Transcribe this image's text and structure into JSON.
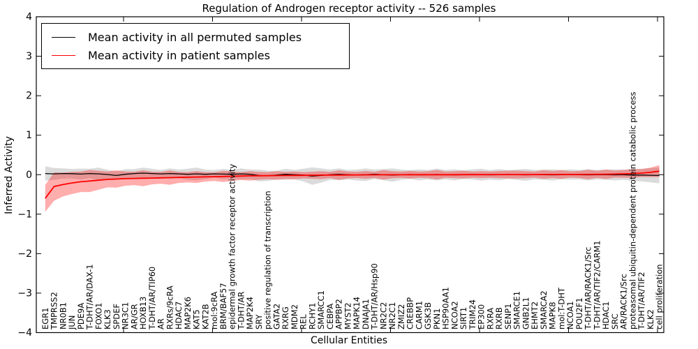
{
  "title": "Regulation of Androgen receptor activity -- 526 samples",
  "chart_data": {
    "type": "line",
    "title": "Regulation of Androgen receptor activity -- 526 samples",
    "xlabel": "Cellular Entities",
    "ylabel": "Inferred Activity",
    "ylim": [
      -4,
      4
    ],
    "yticks": [
      4,
      3,
      2,
      1,
      0,
      -1,
      -2,
      -3,
      -4
    ],
    "grid": false,
    "legend_position": "upper left",
    "legend": [
      {
        "label": "Mean activity in all permuted samples",
        "color": "#000000"
      },
      {
        "label": "Mean activity in patient samples",
        "color": "#ff0000"
      }
    ],
    "band_colors": {
      "permuted": "rgba(0,0,0,0.14)",
      "patient": "rgba(255,0,0,0.32)"
    },
    "categories": [
      "EGR1",
      "TMPRSS2",
      "NR0B1",
      "JUN",
      "PDE9A",
      "T-DHT/AR/DAX-1",
      "FOXO1",
      "KLK3",
      "SPDEF",
      "NR3C1",
      "AR/GR",
      "HOXB13",
      "T-DHT/AR/TIP60",
      "AR",
      "RXRs/9cRA",
      "HDAC7",
      "MAP2K6",
      "KAT5",
      "KAT2B",
      "mol:9cRA",
      "BRM/BAF57",
      "epidermal growth factor receptor activity",
      "T-DHT/AR",
      "MAP2K4",
      "SRY",
      "positive regulation of transcription",
      "GATA2",
      "RXRG",
      "MDM2",
      "REL",
      "RCHY1",
      "SMARCC1",
      "CEBPA",
      "APPBP2",
      "MYST2",
      "MAPK14",
      "DNAJA1",
      "T-DHT/AR/Hsp90",
      "NR2C2",
      "NR2C1",
      "ZMIZ2",
      "CREBBP",
      "CARM1",
      "GSK3B",
      "PKN1",
      "HSP90AA1",
      "NCOA2",
      "SIRT1",
      "TRIM24",
      "EP300",
      "RXRA",
      "RXRB",
      "SENP1",
      "SMARCE1",
      "GNB2L1",
      "EHMT2",
      "SMARCA2",
      "MAPK8",
      "mol:T-DHT",
      "NCOA1",
      "POU2F1",
      "T-DHT/AR/RACK1/Src",
      "T-DHT/AR/TIF2/CARM1",
      "HDAC1",
      "SRC",
      "AR/RACK1/Src",
      "proteasomal ubiquitin-dependent protein catabolic process",
      "T-DHT/AR/TIF2",
      "KLK2",
      "cell proliferation"
    ],
    "series": [
      {
        "name": "Mean activity in all permuted samples",
        "color": "#000000",
        "line_width": 1.3,
        "values": [
          0.03,
          0.02,
          0.03,
          0.025,
          0.015,
          0.03,
          0.02,
          0.005,
          -0.02,
          0.01,
          0.03,
          0.04,
          0.03,
          0.02,
          0.03,
          0.02,
          0.01,
          0.02,
          0.01,
          0.02,
          0.015,
          0.01,
          0.02,
          0.01,
          -0.02,
          -0.03,
          -0.01,
          0.01,
          0,
          -0.01,
          -0.035,
          -0.02,
          0,
          0.01,
          0,
          -0.01,
          0,
          0.01,
          0,
          -0.01,
          0,
          0.005,
          -0.005,
          0,
          0.005,
          0,
          -0.005,
          0,
          0.005,
          0,
          -0.005,
          0,
          0.005,
          0,
          -0.005,
          0,
          0,
          -0.005,
          0,
          0.005,
          0,
          -0.005,
          0,
          0,
          -0.005,
          0,
          -0.01,
          -0.01,
          -0.015,
          -0.02
        ],
        "band_upper": [
          0.21,
          0.17,
          0.16,
          0.145,
          0.155,
          0.15,
          0.18,
          0.125,
          0.08,
          0.14,
          0.14,
          0.18,
          0.15,
          0.12,
          0.16,
          0.13,
          0.15,
          0.18,
          0.13,
          0.12,
          0.145,
          0.12,
          0.16,
          0.13,
          0.13,
          0.1,
          0.1,
          0.15,
          0.12,
          0.15,
          0.185,
          0.16,
          0.13,
          0.16,
          0.12,
          0.13,
          0.16,
          0.13,
          0.14,
          0.16,
          0.13,
          0.115,
          0.135,
          0.12,
          0.155,
          0.12,
          0.135,
          0.11,
          0.135,
          0.15,
          0.115,
          0.14,
          0.115,
          0.13,
          0.145,
          0.12,
          0.13,
          0.135,
          0.12,
          0.135,
          0.12,
          0.135,
          0.12,
          0.13,
          0.135,
          0.13,
          0.14,
          0.15,
          0.165,
          0.18
        ],
        "band_lower": [
          -0.15,
          -0.13,
          -0.1,
          -0.095,
          -0.125,
          -0.09,
          -0.14,
          -0.115,
          -0.12,
          -0.12,
          -0.08,
          -0.1,
          -0.09,
          -0.08,
          -0.1,
          -0.09,
          -0.13,
          -0.14,
          -0.11,
          -0.08,
          -0.115,
          -0.1,
          -0.12,
          -0.11,
          -0.17,
          -0.16,
          -0.12,
          -0.13,
          -0.12,
          -0.17,
          -0.255,
          -0.2,
          -0.13,
          -0.14,
          -0.12,
          -0.15,
          -0.16,
          -0.11,
          -0.14,
          -0.18,
          -0.13,
          -0.105,
          -0.145,
          -0.12,
          -0.145,
          -0.12,
          -0.145,
          -0.11,
          -0.125,
          -0.15,
          -0.125,
          -0.14,
          -0.105,
          -0.13,
          -0.155,
          -0.12,
          -0.13,
          -0.145,
          -0.12,
          -0.125,
          -0.12,
          -0.145,
          -0.12,
          -0.13,
          -0.145,
          -0.13,
          -0.16,
          -0.17,
          -0.195,
          -0.22
        ]
      },
      {
        "name": "Mean activity in patient samples",
        "color": "#ff0000",
        "line_width": 1.8,
        "values": [
          -0.6,
          -0.3,
          -0.25,
          -0.21,
          -0.18,
          -0.16,
          -0.14,
          -0.12,
          -0.11,
          -0.1,
          -0.095,
          -0.09,
          -0.085,
          -0.08,
          -0.075,
          -0.07,
          -0.065,
          -0.06,
          -0.055,
          -0.05,
          -0.045,
          -0.04,
          -0.035,
          -0.03,
          -0.028,
          -0.025,
          -0.022,
          -0.02,
          -0.018,
          -0.016,
          -0.014,
          -0.012,
          -0.01,
          -0.01,
          -0.008,
          -0.006,
          -0.005,
          -0.004,
          -0.003,
          -0.002,
          -0.002,
          -0.001,
          0,
          0,
          0,
          0,
          0,
          0.001,
          0.001,
          0.001,
          0.002,
          0.002,
          0.002,
          0.003,
          0.003,
          0.003,
          0.004,
          0.004,
          0.005,
          0.005,
          0.005,
          0.006,
          0.008,
          0.01,
          0.015,
          0.02,
          0.03,
          0.04,
          0.06,
          0.09
        ],
        "band_upper": [
          -0.26,
          0.06,
          0.05,
          0.07,
          0.08,
          0.12,
          0.1,
          0.08,
          0.11,
          0.08,
          0.075,
          0.11,
          0.075,
          0.07,
          0.105,
          0.07,
          0.065,
          0.09,
          0.065,
          0.06,
          0.095,
          0.08,
          0.065,
          0.09,
          0.072,
          0.065,
          0.088,
          0.07,
          0.082,
          0.064,
          0.076,
          0.088,
          0.07,
          0.11,
          0.082,
          0.074,
          0.095,
          0.076,
          0.117,
          0.088,
          0.078,
          0.099,
          0.08,
          0.09,
          0.12,
          0.08,
          0.09,
          0.101,
          0.081,
          0.091,
          0.082,
          0.092,
          0.102,
          0.103,
          0.093,
          0.083,
          0.114,
          0.094,
          0.115,
          0.085,
          0.095,
          0.126,
          0.098,
          0.13,
          0.105,
          0.12,
          0.14,
          0.14,
          0.18,
          0.24
        ],
        "band_lower": [
          -0.94,
          -0.66,
          -0.55,
          -0.49,
          -0.44,
          -0.44,
          -0.38,
          -0.32,
          -0.33,
          -0.28,
          -0.265,
          -0.29,
          -0.245,
          -0.23,
          -0.255,
          -0.21,
          -0.195,
          -0.21,
          -0.175,
          -0.16,
          -0.185,
          -0.16,
          -0.135,
          -0.15,
          -0.128,
          -0.115,
          -0.132,
          -0.11,
          -0.118,
          -0.096,
          -0.104,
          -0.112,
          -0.09,
          -0.13,
          -0.098,
          -0.086,
          -0.105,
          -0.084,
          -0.123,
          -0.092,
          -0.082,
          -0.101,
          -0.08,
          -0.09,
          -0.12,
          -0.08,
          -0.09,
          -0.099,
          -0.079,
          -0.089,
          -0.078,
          -0.088,
          -0.098,
          -0.097,
          -0.087,
          -0.077,
          -0.106,
          -0.086,
          -0.105,
          -0.075,
          -0.085,
          -0.114,
          -0.082,
          -0.11,
          -0.075,
          -0.08,
          -0.08,
          -0.06,
          -0.06,
          -0.06
        ]
      }
    ]
  }
}
